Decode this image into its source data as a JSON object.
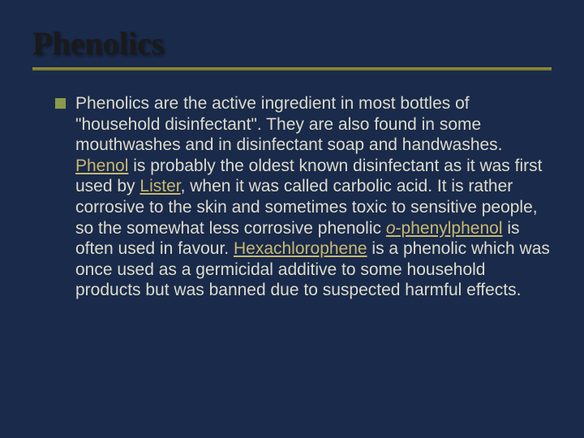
{
  "slide": {
    "title": "Phenolics",
    "background_color": "#1a2a4a",
    "title_color": "#1a1a1a",
    "title_font": "Times New Roman",
    "title_fontsize": 40,
    "rule_colors": [
      "#9a8a3a",
      "#6a7a2a"
    ],
    "bullet_color": "#8a9a4a",
    "body_color": "#dcdccc",
    "body_fontsize": 21,
    "link_color": "#c8b870",
    "paragraph_segments": [
      {
        "text": "Phenolics are the active ingredient in most bottles of \"household disinfectant\". They are also found in some mouthwashes and in disinfectant soap and handwashes. "
      },
      {
        "text": "Phenol",
        "link": true
      },
      {
        "text": " is probably the oldest known disinfectant as it was first used by "
      },
      {
        "text": "Lister",
        "link": true
      },
      {
        "text": ", when it was called carbolic acid. It is rather corrosive to the skin and sometimes toxic to sensitive people, so the somewhat less corrosive phenolic "
      },
      {
        "text": "o",
        "link": true,
        "italic": true
      },
      {
        "text": "-phenylphenol",
        "link": true
      },
      {
        "text": " is often used in favour. "
      },
      {
        "text": "Hexachlorophene",
        "link": true
      },
      {
        "text": " is a phenolic which was once used as a germicidal additive to some household products but was banned due to suspected harmful effects."
      }
    ]
  }
}
